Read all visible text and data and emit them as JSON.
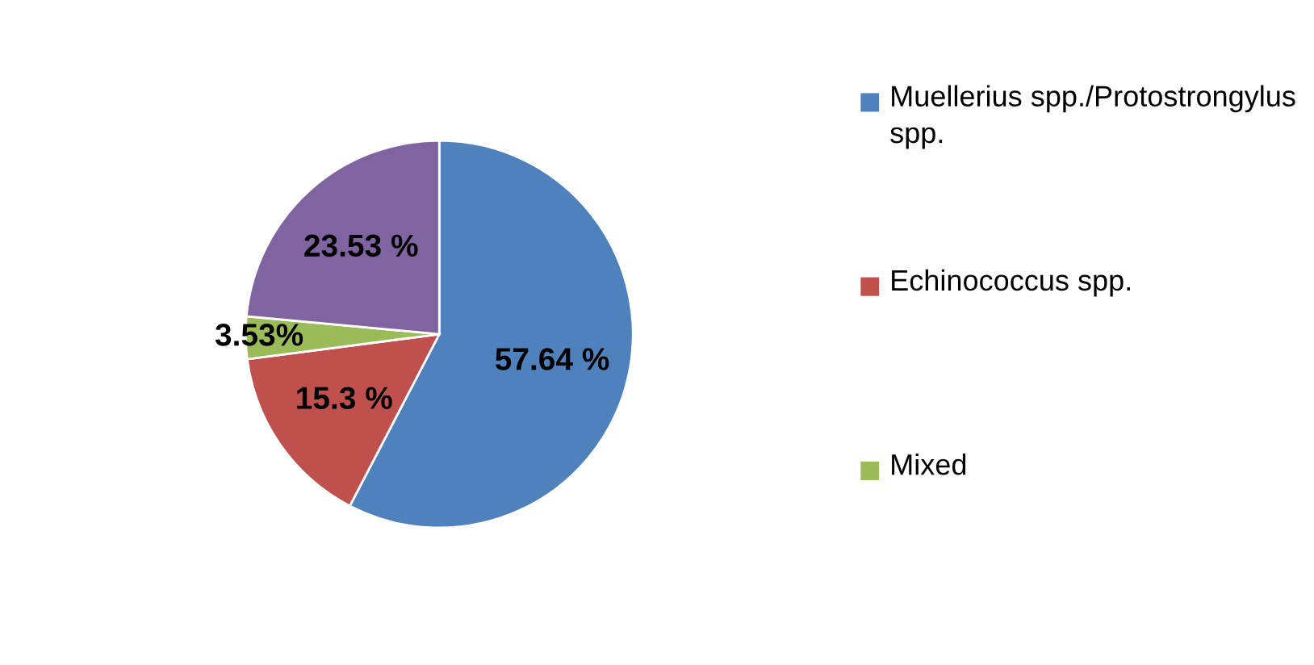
{
  "chart_data": {
    "type": "pie",
    "categories": [
      "Muellerius spp./Protostrongylus spp.",
      "Echinococcus spp.",
      "Mixed",
      null
    ],
    "values": [
      57.64,
      15.3,
      3.53,
      23.53
    ],
    "value_labels": [
      "57.64 %",
      "15.3 %",
      "3.53%",
      "23.53 %"
    ],
    "colors": [
      "#4f81bd",
      "#c0504d",
      "#9bbb59",
      "#8064a2"
    ],
    "legend": "right"
  }
}
